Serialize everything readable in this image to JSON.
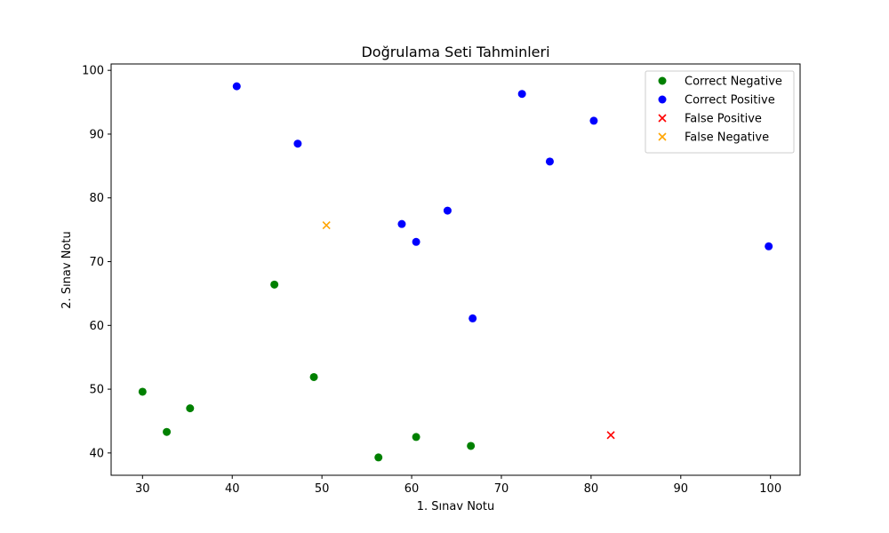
{
  "chart_data": {
    "type": "scatter",
    "title": "Doğrulama Seti Tahminleri",
    "xlabel": "1. Sınav Notu",
    "ylabel": "2. Sınav Notu",
    "xlim": [
      26.5,
      103.3
    ],
    "ylim": [
      36.5,
      101.0
    ],
    "xticks": [
      30,
      40,
      50,
      60,
      70,
      80,
      90,
      100
    ],
    "yticks": [
      40,
      50,
      60,
      70,
      80,
      90,
      100
    ],
    "grid": false,
    "legend_position": "top-right",
    "series": [
      {
        "name": "Correct Negative",
        "marker": "circle",
        "color": "#008000",
        "points": [
          {
            "x": 30.0,
            "y": 49.6
          },
          {
            "x": 35.3,
            "y": 47.0
          },
          {
            "x": 32.7,
            "y": 43.3
          },
          {
            "x": 44.7,
            "y": 66.4
          },
          {
            "x": 49.1,
            "y": 51.9
          },
          {
            "x": 56.3,
            "y": 39.3
          },
          {
            "x": 60.5,
            "y": 42.5
          },
          {
            "x": 66.6,
            "y": 41.1
          }
        ]
      },
      {
        "name": "Correct Positive",
        "marker": "circle",
        "color": "#0000ff",
        "points": [
          {
            "x": 40.5,
            "y": 97.5
          },
          {
            "x": 47.3,
            "y": 88.5
          },
          {
            "x": 58.9,
            "y": 75.9
          },
          {
            "x": 60.5,
            "y": 73.1
          },
          {
            "x": 64.0,
            "y": 78.0
          },
          {
            "x": 66.8,
            "y": 61.1
          },
          {
            "x": 72.3,
            "y": 96.3
          },
          {
            "x": 75.4,
            "y": 85.7
          },
          {
            "x": 80.3,
            "y": 92.1
          },
          {
            "x": 99.8,
            "y": 72.4
          }
        ]
      },
      {
        "name": "False Positive",
        "marker": "x",
        "color": "#ff0000",
        "points": [
          {
            "x": 82.2,
            "y": 42.8
          }
        ]
      },
      {
        "name": "False Negative",
        "marker": "x",
        "color": "#ffa500",
        "points": [
          {
            "x": 50.5,
            "y": 75.7
          }
        ]
      }
    ]
  }
}
